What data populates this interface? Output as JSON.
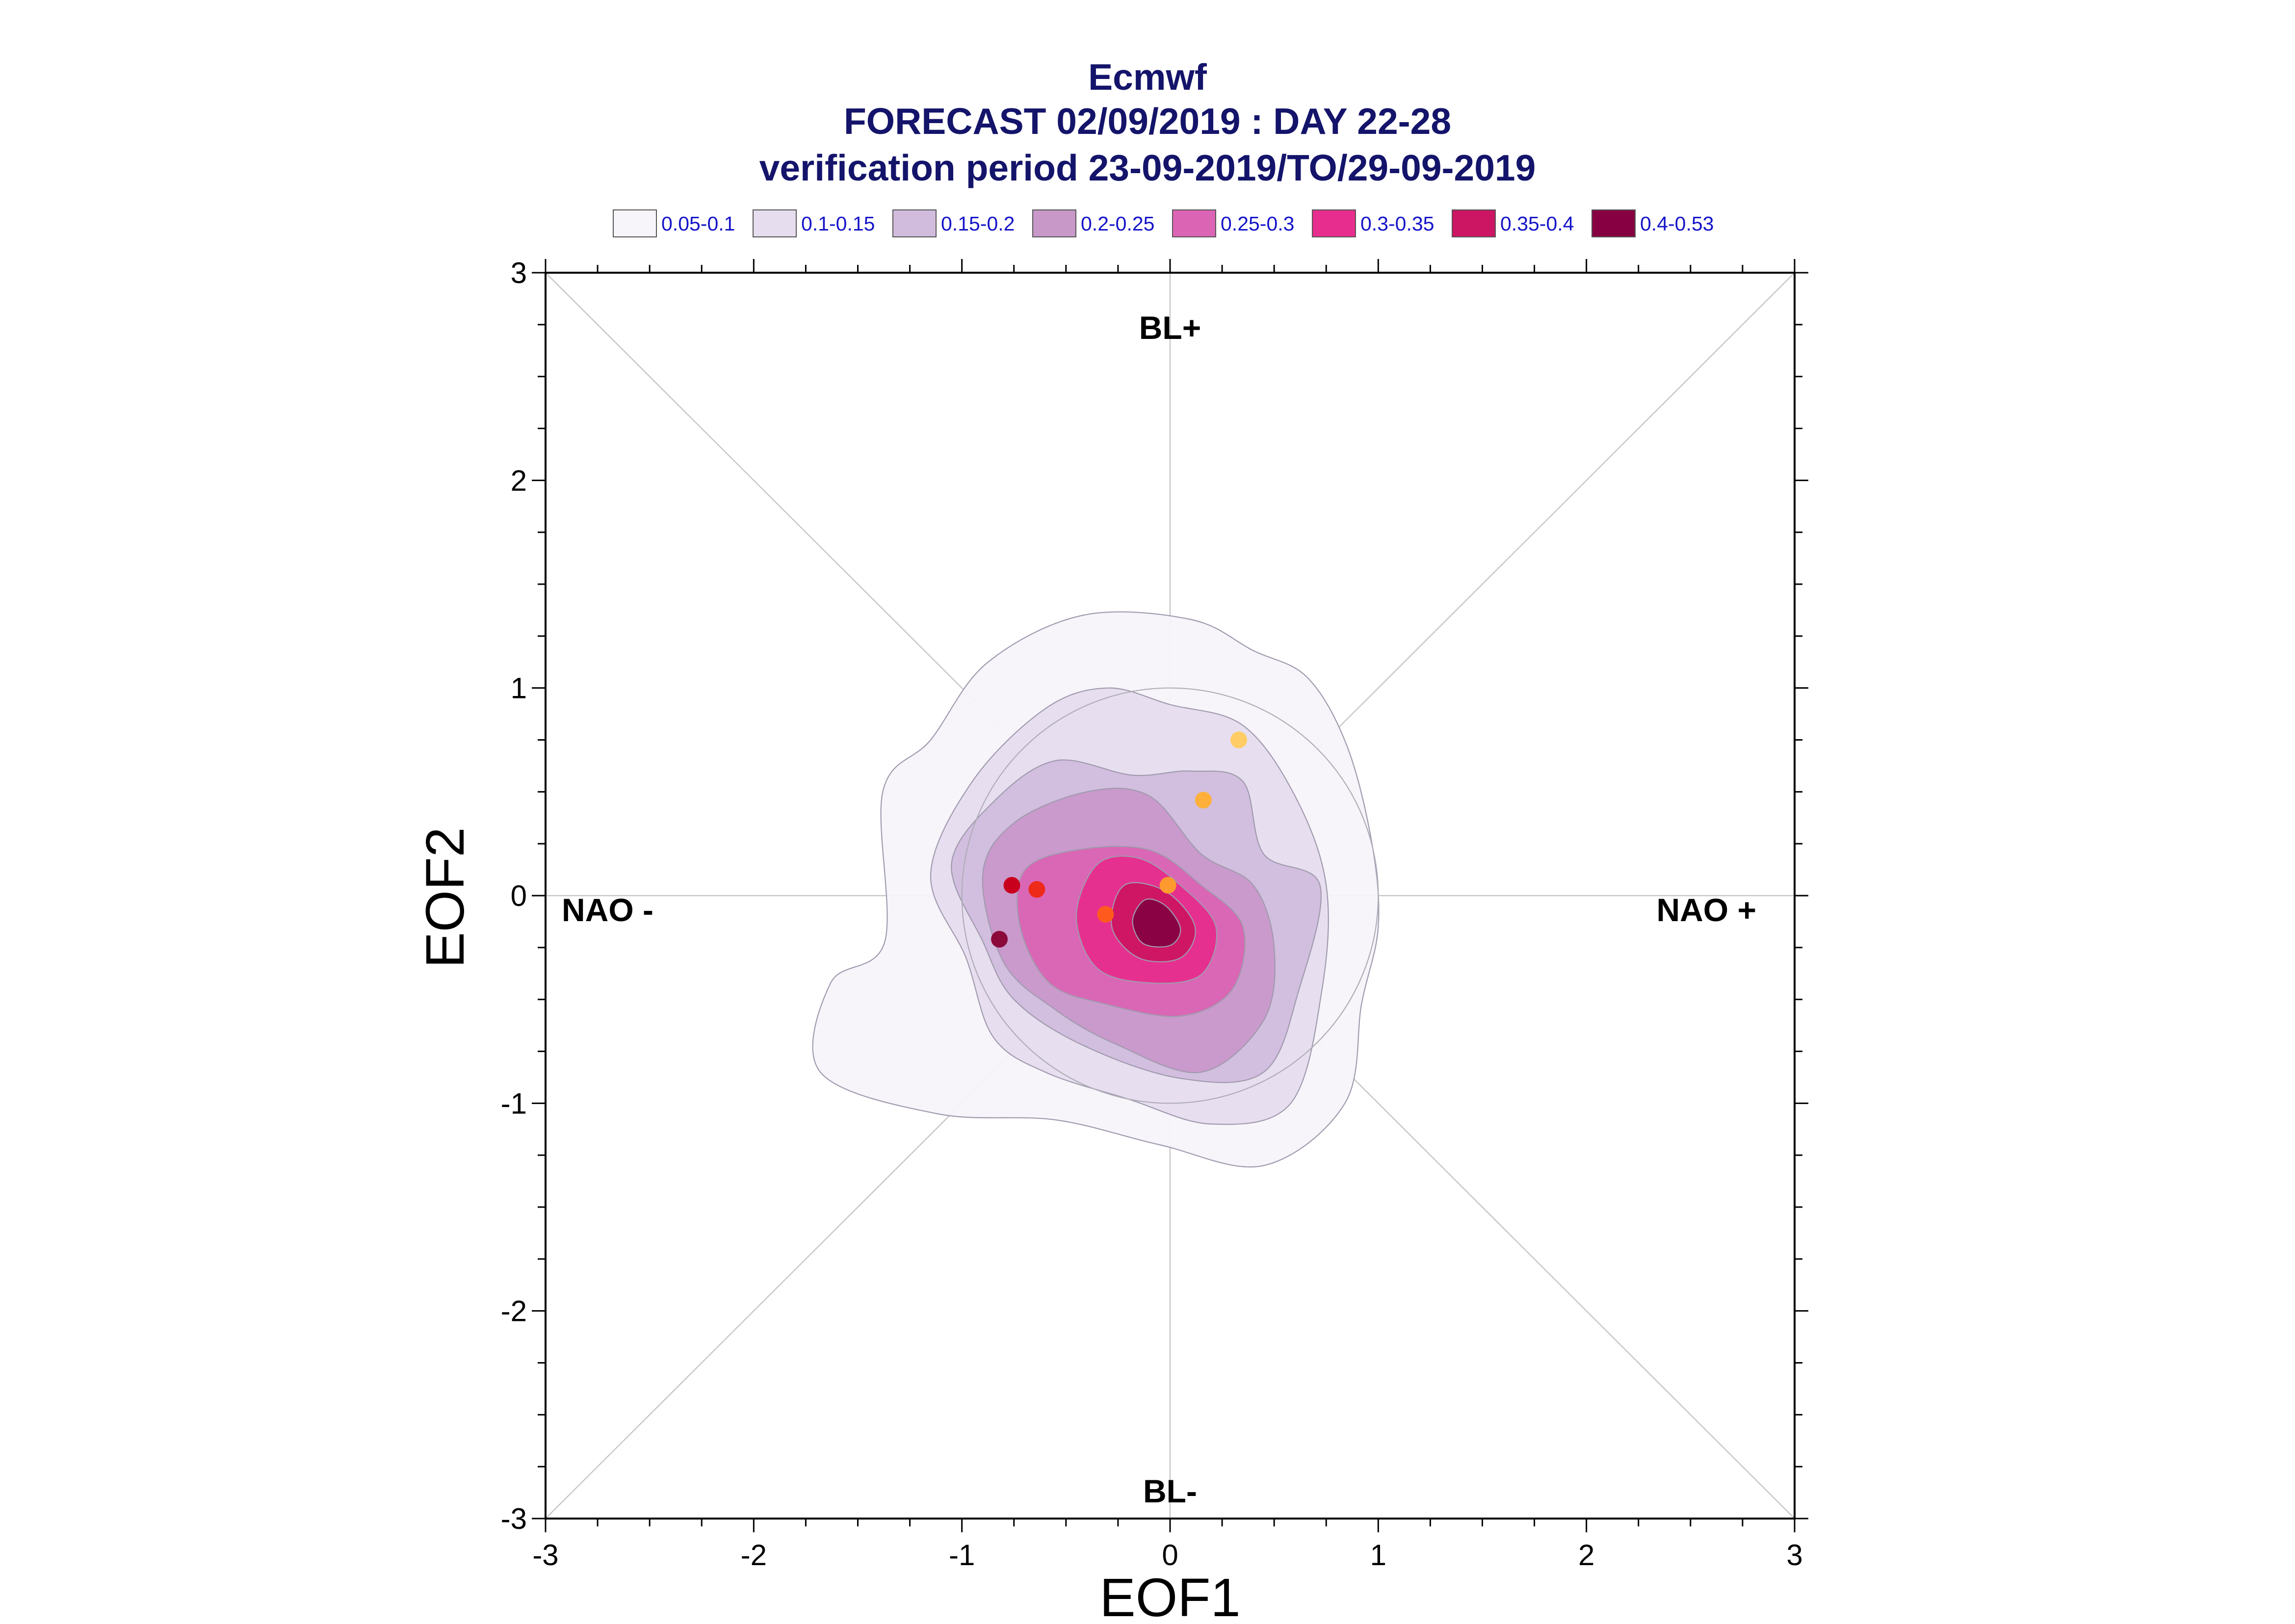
{
  "title_lines": [
    "Ecmwf",
    "FORECAST 02/09/2019 : DAY 22-28",
    "verification period 23-09-2019/TO/29-09-2019"
  ],
  "legend": [
    {
      "label": "0.05-0.1",
      "color": "#f7f4fa"
    },
    {
      "label": "0.1-0.15",
      "color": "#e6ddee"
    },
    {
      "label": "0.15-0.2",
      "color": "#d1bcdd"
    },
    {
      "label": "0.2-0.25",
      "color": "#c898c9"
    },
    {
      "label": "0.25-0.3",
      "color": "#db64b4"
    },
    {
      "label": "0.3-0.35",
      "color": "#e72d8e"
    },
    {
      "label": "0.35-0.4",
      "color": "#cc1563"
    },
    {
      "label": "0.4-0.53",
      "color": "#860042"
    }
  ],
  "regime_labels": {
    "top": "BL+",
    "bottom": "BL-",
    "left": "NAO -",
    "right": "NAO +"
  },
  "chart_data": {
    "type": "contour",
    "xlabel": "EOF1",
    "ylabel": "EOF2",
    "xlim": [
      -3,
      3
    ],
    "ylim": [
      -3,
      3
    ],
    "xticks": [
      "-3",
      "-2",
      "-1",
      "0",
      "1",
      "2",
      "3"
    ],
    "yticks": [
      "-3",
      "-2",
      "-1",
      "0",
      "1",
      "2",
      "3"
    ],
    "density_contours": [
      {
        "level": "0.05-0.1",
        "points": [
          [
            -0.88,
            1.12
          ],
          [
            -0.42,
            1.35
          ],
          [
            0.1,
            1.33
          ],
          [
            0.4,
            1.18
          ],
          [
            0.66,
            1.05
          ],
          [
            0.85,
            0.72
          ],
          [
            0.97,
            0.25
          ],
          [
            1.0,
            -0.15
          ],
          [
            0.92,
            -0.52
          ],
          [
            0.84,
            -1.0
          ],
          [
            0.45,
            -1.3
          ],
          [
            -0.05,
            -1.2
          ],
          [
            -0.55,
            -1.08
          ],
          [
            -1.12,
            -1.05
          ],
          [
            -1.68,
            -0.85
          ],
          [
            -1.63,
            -0.42
          ],
          [
            -1.37,
            -0.22
          ],
          [
            -1.38,
            0.5
          ],
          [
            -1.15,
            0.75
          ]
        ]
      },
      {
        "level": "0.1-0.15",
        "points": [
          [
            -0.6,
            0.9
          ],
          [
            -0.3,
            1.0
          ],
          [
            0.0,
            0.92
          ],
          [
            0.35,
            0.82
          ],
          [
            0.6,
            0.48
          ],
          [
            0.75,
            0.05
          ],
          [
            0.73,
            -0.45
          ],
          [
            0.58,
            -1.0
          ],
          [
            0.2,
            -1.1
          ],
          [
            -0.2,
            -0.98
          ],
          [
            -0.6,
            -0.85
          ],
          [
            -0.85,
            -0.68
          ],
          [
            -0.98,
            -0.3
          ],
          [
            -1.15,
            0.1
          ],
          [
            -0.95,
            0.55
          ]
        ]
      },
      {
        "level": "0.15-0.2",
        "points": [
          [
            -0.85,
            0.45
          ],
          [
            -0.55,
            0.65
          ],
          [
            -0.18,
            0.58
          ],
          [
            0.1,
            0.6
          ],
          [
            0.35,
            0.55
          ],
          [
            0.45,
            0.2
          ],
          [
            0.72,
            0.05
          ],
          [
            0.62,
            -0.45
          ],
          [
            0.45,
            -0.85
          ],
          [
            0.05,
            -0.88
          ],
          [
            -0.42,
            -0.72
          ],
          [
            -0.75,
            -0.5
          ],
          [
            -0.9,
            -0.22
          ],
          [
            -1.05,
            0.15
          ]
        ]
      },
      {
        "level": "0.2-0.25",
        "points": [
          [
            -0.75,
            0.35
          ],
          [
            -0.4,
            0.5
          ],
          [
            -0.1,
            0.48
          ],
          [
            0.15,
            0.2
          ],
          [
            0.4,
            0.05
          ],
          [
            0.5,
            -0.25
          ],
          [
            0.45,
            -0.6
          ],
          [
            0.15,
            -0.85
          ],
          [
            -0.25,
            -0.72
          ],
          [
            -0.55,
            -0.55
          ],
          [
            -0.8,
            -0.32
          ],
          [
            -0.9,
            0.1
          ]
        ]
      },
      {
        "level": "0.25-0.3",
        "points": [
          [
            -0.7,
            0.12
          ],
          [
            -0.45,
            0.22
          ],
          [
            -0.1,
            0.22
          ],
          [
            0.15,
            0.05
          ],
          [
            0.35,
            -0.15
          ],
          [
            0.3,
            -0.45
          ],
          [
            0.05,
            -0.58
          ],
          [
            -0.32,
            -0.52
          ],
          [
            -0.58,
            -0.42
          ],
          [
            -0.72,
            -0.15
          ]
        ]
      },
      {
        "level": "0.3-0.35",
        "points": [
          [
            -0.35,
            0.15
          ],
          [
            -0.15,
            0.18
          ],
          [
            0.05,
            0.05
          ],
          [
            0.22,
            -0.15
          ],
          [
            0.15,
            -0.38
          ],
          [
            -0.1,
            -0.42
          ],
          [
            -0.35,
            -0.35
          ],
          [
            -0.45,
            -0.1
          ]
        ]
      },
      {
        "level": "0.35-0.4",
        "points": [
          [
            -0.22,
            0.05
          ],
          [
            -0.02,
            0.02
          ],
          [
            0.12,
            -0.15
          ],
          [
            0.05,
            -0.3
          ],
          [
            -0.15,
            -0.3
          ],
          [
            -0.28,
            -0.15
          ]
        ]
      },
      {
        "level": "0.4-0.53",
        "points": [
          [
            -0.12,
            -0.02
          ],
          [
            -0.02,
            -0.05
          ],
          [
            0.05,
            -0.16
          ],
          [
            0.0,
            -0.24
          ],
          [
            -0.13,
            -0.23
          ],
          [
            -0.18,
            -0.12
          ]
        ]
      }
    ],
    "reference_circle_radius": 1.0,
    "points": [
      {
        "x": 0.33,
        "y": 0.75,
        "color": "#ffcc66"
      },
      {
        "x": 0.16,
        "y": 0.46,
        "color": "#ffb03a"
      },
      {
        "x": -0.01,
        "y": 0.05,
        "color": "#ff9b2e"
      },
      {
        "x": -0.31,
        "y": -0.09,
        "color": "#ff5a1e"
      },
      {
        "x": -0.64,
        "y": 0.03,
        "color": "#ee2a1a"
      },
      {
        "x": -0.76,
        "y": 0.05,
        "color": "#c8001e"
      },
      {
        "x": -0.82,
        "y": -0.21,
        "color": "#8b0a3a"
      }
    ]
  }
}
